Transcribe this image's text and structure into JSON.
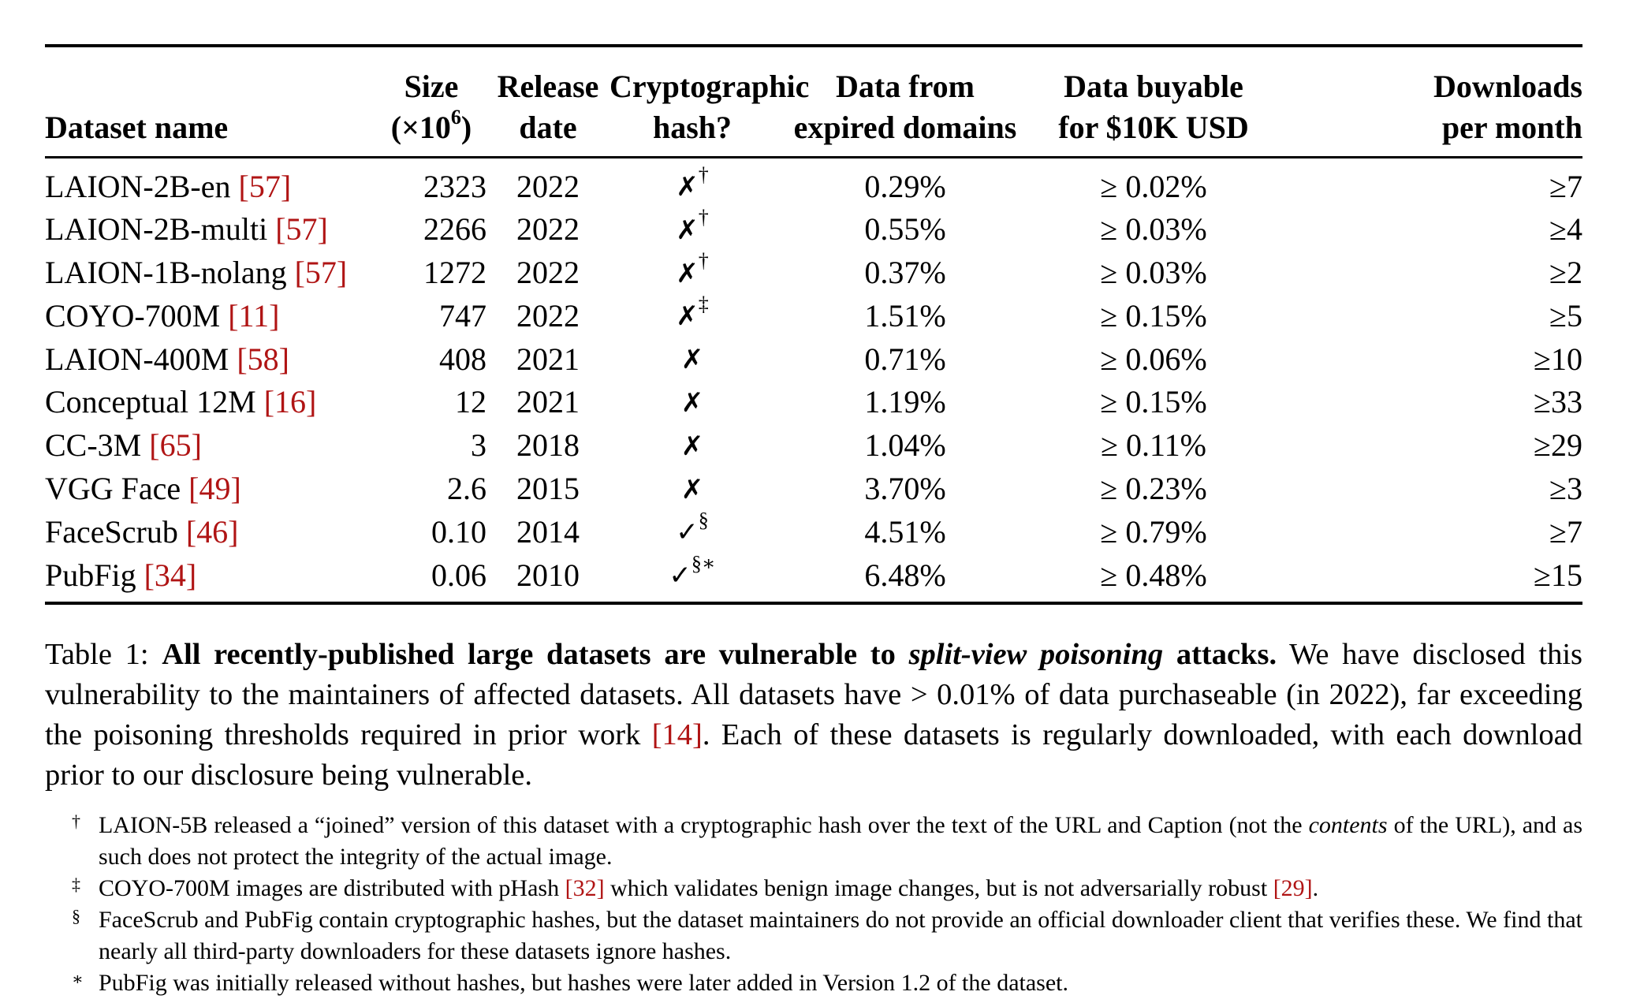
{
  "table": {
    "headers": {
      "name": "Dataset name",
      "size_line1": "Size",
      "size_line2_pre": "(×10",
      "size_line2_sup": "6",
      "size_line2_post": ")",
      "release_line1": "Release",
      "release_line2": "date",
      "hash_line1": "Cryptographic",
      "hash_line2": "hash?",
      "expired_line1": "Data from",
      "expired_line2": "expired domains",
      "buyable_line1": "Data buyable",
      "buyable_line2": "for $10K USD",
      "downloads_line1": "Downloads",
      "downloads_line2": "per month"
    },
    "rows": [
      {
        "name": "LAION-2B-en",
        "cite": "[57]",
        "size": "2323",
        "date": "2022",
        "hash": "✗",
        "hash_sup": "†",
        "expired": "0.29%",
        "buyable": "≥ 0.02%",
        "downloads": "≥7"
      },
      {
        "name": "LAION-2B-multi",
        "cite": "[57]",
        "size": "2266",
        "date": "2022",
        "hash": "✗",
        "hash_sup": "†",
        "expired": "0.55%",
        "buyable": "≥ 0.03%",
        "downloads": "≥4"
      },
      {
        "name": "LAION-1B-nolang",
        "cite": "[57]",
        "size": "1272",
        "date": "2022",
        "hash": "✗",
        "hash_sup": "†",
        "expired": "0.37%",
        "buyable": "≥ 0.03%",
        "downloads": "≥2"
      },
      {
        "name": "COYO-700M",
        "cite": "[11]",
        "size": "747",
        "date": "2022",
        "hash": "✗",
        "hash_sup": "‡",
        "expired": "1.51%",
        "buyable": "≥ 0.15%",
        "downloads": "≥5"
      },
      {
        "name": "LAION-400M",
        "cite": "[58]",
        "size": "408",
        "date": "2021",
        "hash": "✗",
        "hash_sup": "",
        "expired": "0.71%",
        "buyable": "≥ 0.06%",
        "downloads": "≥10"
      },
      {
        "name": "Conceptual 12M",
        "cite": "[16]",
        "size": "12",
        "date": "2021",
        "hash": "✗",
        "hash_sup": "",
        "expired": "1.19%",
        "buyable": "≥ 0.15%",
        "downloads": "≥33"
      },
      {
        "name": "CC-3M",
        "cite": "[65]",
        "size": "3",
        "date": "2018",
        "hash": "✗",
        "hash_sup": "",
        "expired": "1.04%",
        "buyable": "≥ 0.11%",
        "downloads": "≥29"
      },
      {
        "name": "VGG Face",
        "cite": "[49]",
        "size": "2.6",
        "date": "2015",
        "hash": "✗",
        "hash_sup": "",
        "expired": "3.70%",
        "buyable": "≥ 0.23%",
        "downloads": "≥3"
      },
      {
        "name": "FaceScrub",
        "cite": "[46]",
        "size": "0.10",
        "date": "2014",
        "hash": "✓",
        "hash_sup": "§",
        "expired": "4.51%",
        "buyable": "≥ 0.79%",
        "downloads": "≥7"
      },
      {
        "name": "PubFig",
        "cite": "[34]",
        "size": "0.06",
        "date": "2010",
        "hash": "✓",
        "hash_sup": "§∗",
        "expired": "6.48%",
        "buyable": "≥ 0.48%",
        "downloads": "≥15"
      }
    ]
  },
  "caption": {
    "label": "Table 1:",
    "bold_a": "All recently-published large datasets are vulnerable to",
    "bold_italic": "split-view poisoning",
    "bold_b": "attacks.",
    "text_a": "We have disclosed this vulnerability to the maintainers of affected datasets. All datasets have > 0.01% of data purchaseable (in 2022), far exceeding the poisoning thresholds required in prior work",
    "cite": "[14]",
    "text_b": ". Each of these datasets is regularly downloaded, with each download prior to our disclosure being vulnerable."
  },
  "footnotes": [
    {
      "sym": "†",
      "pre": "LAION-5B released a “joined” version of this dataset with a cryptographic hash over the text of the URL and Caption (not the",
      "italic": "contents",
      "post": "of the URL), and as such does not protect the integrity of the actual image.",
      "cite1": "",
      "mid": "",
      "cite2": "",
      "end": ""
    },
    {
      "sym": "‡",
      "pre": "COYO-700M images are distributed with pHash",
      "italic": "",
      "post": "",
      "cite1": "[32]",
      "mid": "which validates benign image changes, but is not adversarially robust",
      "cite2": "[29]",
      "end": "."
    },
    {
      "sym": "§",
      "pre": "FaceScrub and PubFig contain cryptographic hashes, but the dataset maintainers do not provide an official downloader client that verifies these. We find that nearly all third-party downloaders for these datasets ignore hashes.",
      "italic": "",
      "post": "",
      "cite1": "",
      "mid": "",
      "cite2": "",
      "end": ""
    },
    {
      "sym": "∗",
      "pre": "PubFig was initially released without hashes, but hashes were later added in Version 1.2 of the dataset.",
      "italic": "",
      "post": "",
      "cite1": "",
      "mid": "",
      "cite2": "",
      "end": ""
    }
  ]
}
